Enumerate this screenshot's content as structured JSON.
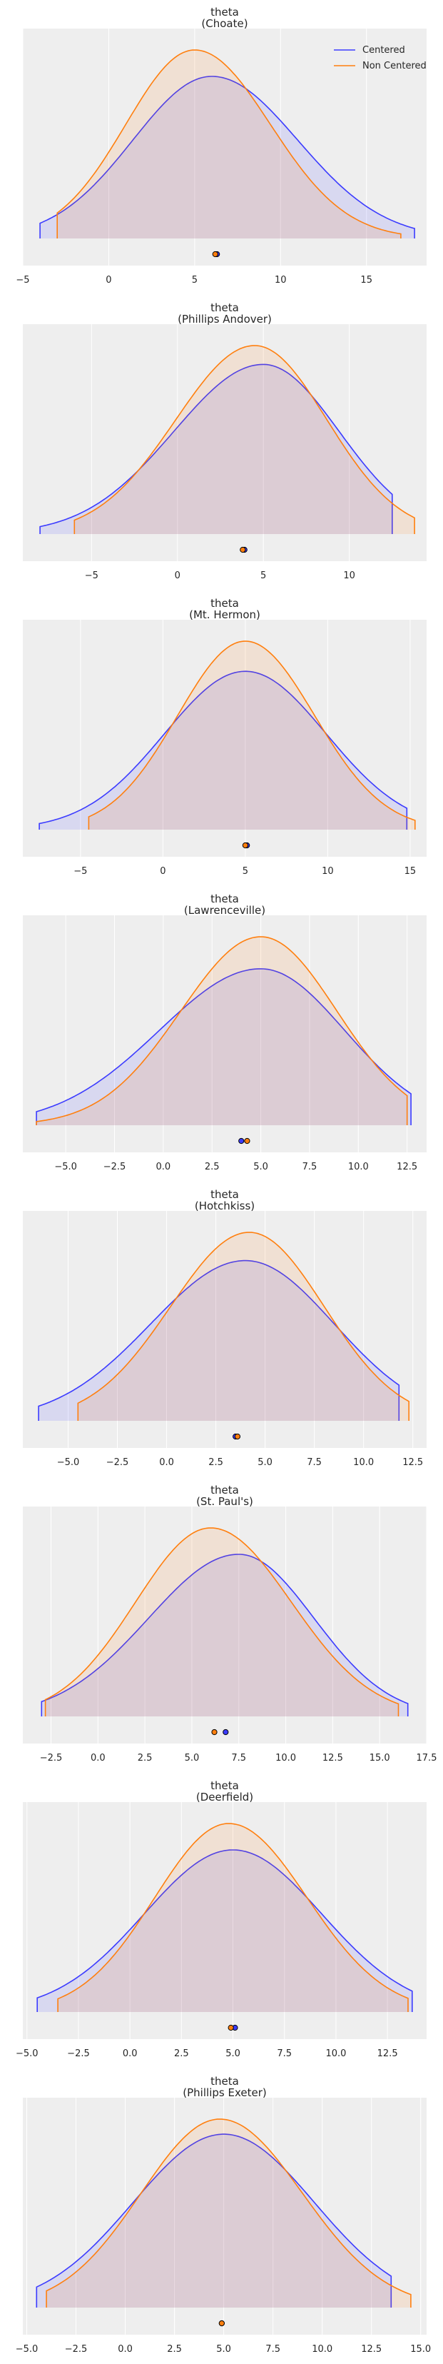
{
  "colors": {
    "centered": "#3b3bff",
    "non_centered": "#ff7f0e",
    "panel_bg": "#eeeeee",
    "grid": "#ffffff",
    "text": "#262626"
  },
  "legend": {
    "items": [
      "Centered",
      "Non Centered"
    ],
    "placement": "top-right"
  },
  "chart_data": [
    {
      "type": "area",
      "title_line1": "theta",
      "title_line2": "(Choate)",
      "xlim": [
        -5,
        18.5
      ],
      "xticks": [
        -5,
        0,
        5,
        10,
        15
      ],
      "xtick_labels": [
        "−5",
        "0",
        "5",
        "10",
        "15"
      ],
      "series": [
        {
          "name": "Centered",
          "range": [
            -4,
            17.8
          ],
          "mode": 6.0,
          "sd_left": 4.6,
          "sd_right": 5.0,
          "peak": 0.86,
          "mean": 6.3
        },
        {
          "name": "Non Centered",
          "range": [
            -3,
            17.0
          ],
          "mode": 5.0,
          "sd_left": 4.0,
          "sd_right": 4.4,
          "peak": 1.0,
          "mean": 6.2
        }
      ]
    },
    {
      "type": "area",
      "title_line1": "theta",
      "title_line2": "(Phillips Andover)",
      "xlim": [
        -9,
        14.5
      ],
      "xticks": [
        -5,
        0,
        5,
        10
      ],
      "xtick_labels": [
        "−5",
        "0",
        "5",
        "10"
      ],
      "series": [
        {
          "name": "Centered",
          "range": [
            -8,
            12.5
          ],
          "mode": 5.0,
          "sd_left": 5.2,
          "sd_right": 4.4,
          "peak": 0.9,
          "mean": 3.9
        },
        {
          "name": "Non Centered",
          "range": [
            -6,
            13.8
          ],
          "mode": 4.5,
          "sd_left": 4.6,
          "sd_right": 4.2,
          "peak": 1.0,
          "mean": 3.8
        }
      ]
    },
    {
      "type": "area",
      "title_line1": "theta",
      "title_line2": "(Mt. Hermon)",
      "xlim": [
        -8.5,
        16
      ],
      "xticks": [
        -5,
        0,
        5,
        10,
        15
      ],
      "xtick_labels": [
        "−5",
        "0",
        "5",
        "10",
        "15"
      ],
      "series": [
        {
          "name": "Centered",
          "range": [
            -7.5,
            14.8
          ],
          "mode": 5.0,
          "sd_left": 4.9,
          "sd_right": 4.9,
          "peak": 0.84,
          "mean": 5.1
        },
        {
          "name": "Non Centered",
          "range": [
            -4.5,
            15.3
          ],
          "mode": 5.0,
          "sd_left": 4.1,
          "sd_right": 4.2,
          "peak": 1.0,
          "mean": 5.0
        }
      ]
    },
    {
      "type": "area",
      "title_line1": "theta",
      "title_line2": "(Lawrenceville)",
      "xlim": [
        -7.2,
        13.5
      ],
      "xticks": [
        -5,
        -2.5,
        0,
        2.5,
        5,
        7.5,
        10,
        12.5
      ],
      "xtick_labels": [
        "−5.0",
        "−2.5",
        "0.0",
        "2.5",
        "5.0",
        "7.5",
        "10.0",
        "12.5"
      ],
      "series": [
        {
          "name": "Centered",
          "range": [
            -6.5,
            12.7
          ],
          "mode": 5.0,
          "sd_left": 5.2,
          "sd_right": 4.3,
          "peak": 0.83,
          "mean": 4.0
        },
        {
          "name": "Non Centered",
          "range": [
            -6.5,
            12.5
          ],
          "mode": 5.0,
          "sd_left": 4.1,
          "sd_right": 3.9,
          "peak": 1.0,
          "mean": 4.3
        }
      ]
    },
    {
      "type": "area",
      "title_line1": "theta",
      "title_line2": "(Hotchkiss)",
      "xlim": [
        -7.3,
        13.2
      ],
      "xticks": [
        -5,
        -2.5,
        0,
        2.5,
        5,
        7.5,
        10,
        12.5
      ],
      "xtick_labels": [
        "−5.0",
        "−2.5",
        "0.0",
        "2.5",
        "5.0",
        "7.5",
        "10.0",
        "12.5"
      ],
      "series": [
        {
          "name": "Centered",
          "range": [
            -6.5,
            11.8
          ],
          "mode": 4.0,
          "sd_left": 4.8,
          "sd_right": 4.5,
          "peak": 0.85,
          "mean": 3.5
        },
        {
          "name": "Non Centered",
          "range": [
            -4.5,
            12.3
          ],
          "mode": 4.2,
          "sd_left": 4.0,
          "sd_right": 3.8,
          "peak": 1.0,
          "mean": 3.6
        }
      ]
    },
    {
      "type": "area",
      "title_line1": "theta",
      "title_line2": "(St. Paul's)",
      "xlim": [
        -4,
        17.5
      ],
      "xticks": [
        -2.5,
        0,
        2.5,
        5,
        7.5,
        10,
        12.5,
        15,
        17.5
      ],
      "xtick_labels": [
        "−2.5",
        "0.0",
        "2.5",
        "5.0",
        "7.5",
        "10.0",
        "12.5",
        "15.0",
        "17.5"
      ],
      "series": [
        {
          "name": "Centered",
          "range": [
            -3.0,
            16.5
          ],
          "mode": 7.5,
          "sd_left": 4.8,
          "sd_right": 4.0,
          "peak": 0.86,
          "mean": 6.8
        },
        {
          "name": "Non Centered",
          "range": [
            -2.8,
            16.0
          ],
          "mode": 6.0,
          "sd_left": 4.0,
          "sd_right": 4.3,
          "peak": 1.0,
          "mean": 6.2
        }
      ]
    },
    {
      "type": "area",
      "title_line1": "theta",
      "title_line2": "(Deerfield)",
      "xlim": [
        -5.2,
        14.4
      ],
      "xticks": [
        -5,
        -2.5,
        0,
        2.5,
        5,
        7.5,
        10,
        12.5
      ],
      "xtick_labels": [
        "−5.0",
        "−2.5",
        "0.0",
        "2.5",
        "5.0",
        "7.5",
        "10.0",
        "12.5"
      ],
      "series": [
        {
          "name": "Centered",
          "range": [
            -4.5,
            13.7
          ],
          "mode": 5.0,
          "sd_left": 4.3,
          "sd_right": 4.3,
          "peak": 0.86,
          "mean": 5.1
        },
        {
          "name": "Non Centered",
          "range": [
            -3.5,
            13.5
          ],
          "mode": 4.8,
          "sd_left": 3.6,
          "sd_right": 3.8,
          "peak": 1.0,
          "mean": 4.9
        }
      ]
    },
    {
      "type": "area",
      "title_line1": "theta",
      "title_line2": "(Phillips Exeter)",
      "xlim": [
        -5.2,
        15.3
      ],
      "xticks": [
        -5,
        -2.5,
        0,
        2.5,
        5,
        7.5,
        10,
        12.5,
        15
      ],
      "xtick_labels": [
        "−5.0",
        "−2.5",
        "0.0",
        "2.5",
        "5.0",
        "7.5",
        "10.0",
        "12.5",
        "15.0"
      ],
      "series": [
        {
          "name": "Centered",
          "range": [
            -4.5,
            13.5
          ],
          "mode": 5.0,
          "sd_left": 4.6,
          "sd_right": 4.6,
          "peak": 0.92,
          "mean": 4.9
        },
        {
          "name": "Non Centered",
          "range": [
            -4.0,
            14.5
          ],
          "mode": 4.8,
          "sd_left": 4.0,
          "sd_right": 4.2,
          "peak": 1.0,
          "mean": 4.9
        }
      ]
    }
  ]
}
